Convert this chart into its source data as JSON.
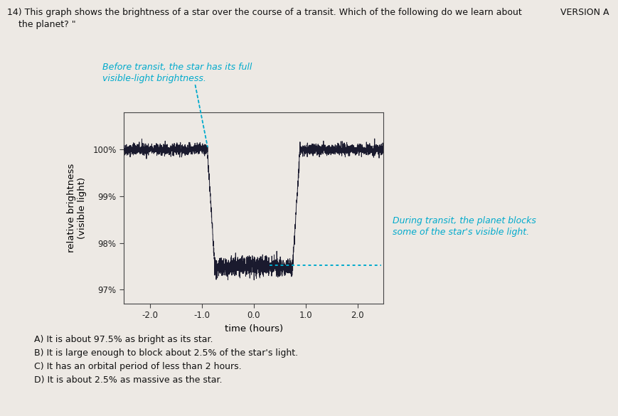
{
  "title_version": "VERSION A",
  "question_text": "14) This graph shows the brightness of a star over the course of a transit. Which of the following do we learn about\n    the planet? \"",
  "annotation_before": "Before transit, the star has its full\nvisible-light brightness.",
  "annotation_during": "During transit, the planet blocks\nsome of the star's visible light.",
  "xlabel": "time (hours)",
  "ylabel": "relative brightness\n(visible light)",
  "xlim": [
    -2.5,
    2.5
  ],
  "ylim": [
    96.7,
    100.8
  ],
  "yticks": [
    97,
    98,
    99,
    100
  ],
  "ytick_labels": [
    "97%",
    "98%",
    "99%",
    "100%"
  ],
  "xticks": [
    -2.0,
    -1.0,
    0.0,
    1.0,
    2.0
  ],
  "xtick_labels": [
    "-2.0",
    "-1.0",
    "0.0",
    "1.0",
    "2.0"
  ],
  "transit_start": -0.75,
  "transit_end": 0.75,
  "baseline": 100.0,
  "transit_depth": 97.5,
  "noise_amplitude": 0.06,
  "transit_noise_amplitude": 0.1,
  "line_color": "#1a1a2e",
  "annotation_color": "#00aacc",
  "bg_color": "#ede9e4",
  "answers": [
    "A) It is about 97.5% as bright as its star.",
    "B) It is large enough to block about 2.5% of the star's light.",
    "C) It has an orbital period of less than 2 hours.",
    "D) It is about 2.5% as massive as the star."
  ]
}
